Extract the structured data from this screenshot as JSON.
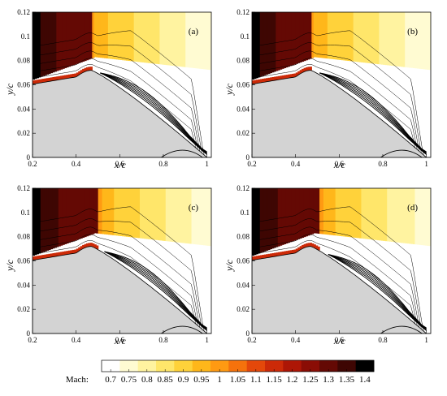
{
  "chart_data": {
    "type": "heatmap",
    "panels": [
      {
        "tag": "(a)",
        "shock_x": 0.47,
        "separation_x": 0.51
      },
      {
        "tag": "(b)",
        "shock_x": 0.47,
        "separation_x": 0.51
      },
      {
        "tag": "(c)",
        "shock_x": 0.5,
        "separation_x": 0.53
      },
      {
        "tag": "(d)",
        "shock_x": 0.51,
        "separation_x": 0.55
      }
    ],
    "xlabel": "x/c",
    "ylabel": "y/c",
    "xlim": [
      0.2,
      1.02
    ],
    "ylim": [
      0,
      0.12
    ],
    "xticks": [
      "0.2",
      "0.4",
      "0.6",
      "0.8",
      "1"
    ],
    "yticks": [
      "0",
      "0.02",
      "0.04",
      "0.06",
      "0.08",
      "0.1",
      "0.12"
    ],
    "colorbar": {
      "label": "Mach:",
      "levels": [
        "0.7",
        "0.75",
        "0.8",
        "0.85",
        "0.9",
        "0.95",
        "1",
        "1.05",
        "1.1",
        "1.15",
        "1.2",
        "1.25",
        "1.3",
        "1.35",
        "1.4"
      ],
      "colors": [
        "#ffffff",
        "#fffbd2",
        "#fff3a0",
        "#ffe66a",
        "#ffd23a",
        "#ffb71a",
        "#ff9a12",
        "#f5720c",
        "#e4480a",
        "#cc2a08",
        "#ad1606",
        "#8a0d05",
        "#640904",
        "#3e0603",
        "#000000"
      ]
    },
    "surface_color": "#d3d3d3"
  }
}
